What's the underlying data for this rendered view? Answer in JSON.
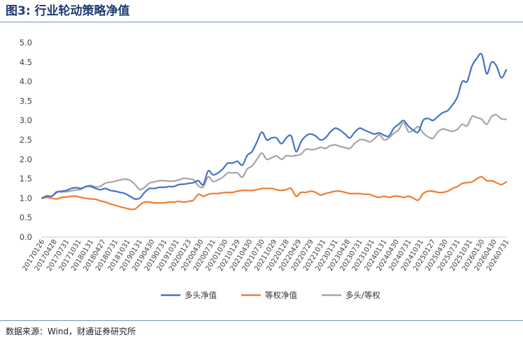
{
  "figure": {
    "title": "图3: 行业轮动策略净值",
    "source": "数据来源：Wind，财通证券研究所"
  },
  "chart_data": {
    "type": "line",
    "ylim": [
      0,
      5
    ],
    "yticks": [
      "0.0",
      "0.5",
      "1.0",
      "1.5",
      "2.0",
      "2.5",
      "3.0",
      "3.5",
      "4.0",
      "4.5",
      "5.0"
    ],
    "grid": false,
    "legend_position": "bottom",
    "xtick_labels": [
      "20170126",
      "20170428",
      "20170731",
      "20171031",
      "20180131",
      "20180427",
      "20180731",
      "20181031",
      "20190131",
      "20190430",
      "20190731",
      "20191031",
      "20200123",
      "20200430",
      "20200731",
      "20201030",
      "20210129",
      "20210430",
      "20210730",
      "20211029",
      "20220128",
      "20220429",
      "20220729",
      "20221031",
      "20230131",
      "20230428",
      "20230731",
      "20231031",
      "20240131",
      "20240430",
      "20240731",
      "20241031",
      "20250127",
      "20250430",
      "20250731",
      "20251031",
      "20260130",
      "20260430",
      "20260731"
    ],
    "series": [
      {
        "name": "多头净值",
        "color": "#4472c4",
        "values": [
          1.0,
          1.06,
          1.05,
          1.15,
          1.18,
          1.2,
          1.25,
          1.27,
          1.25,
          1.3,
          1.3,
          1.25,
          1.22,
          1.25,
          1.2,
          1.18,
          1.15,
          1.12,
          1.05,
          0.98,
          1.0,
          1.15,
          1.25,
          1.25,
          1.28,
          1.28,
          1.3,
          1.3,
          1.35,
          1.36,
          1.38,
          1.4,
          1.45,
          1.35,
          1.7,
          1.6,
          1.65,
          1.75,
          1.9,
          1.9,
          1.95,
          1.85,
          2.1,
          2.2,
          2.45,
          2.7,
          2.5,
          2.55,
          2.55,
          2.4,
          2.55,
          2.6,
          2.2,
          2.45,
          2.6,
          2.65,
          2.6,
          2.5,
          2.55,
          2.7,
          2.8,
          2.75,
          2.65,
          2.55,
          2.7,
          2.8,
          2.75,
          2.7,
          2.65,
          2.68,
          2.62,
          2.6,
          2.8,
          2.9,
          3.0,
          2.85,
          2.75,
          2.7,
          3.0,
          3.05,
          3.0,
          3.1,
          3.2,
          3.25,
          3.4,
          3.6,
          4.0,
          4.0,
          4.4,
          4.6,
          4.7,
          4.2,
          4.5,
          4.4,
          4.1,
          4.3
        ]
      },
      {
        "name": "等权净值",
        "color": "#ed7d31",
        "values": [
          1.0,
          1.02,
          1.0,
          0.98,
          1.02,
          1.03,
          1.05,
          1.05,
          1.02,
          1.0,
          0.98,
          0.97,
          0.93,
          0.9,
          0.85,
          0.82,
          0.78,
          0.75,
          0.72,
          0.72,
          0.82,
          0.9,
          0.9,
          0.88,
          0.88,
          0.88,
          0.9,
          0.9,
          0.92,
          0.9,
          0.92,
          0.95,
          1.1,
          1.05,
          1.1,
          1.12,
          1.12,
          1.14,
          1.15,
          1.15,
          1.18,
          1.2,
          1.2,
          1.2,
          1.22,
          1.25,
          1.25,
          1.25,
          1.22,
          1.2,
          1.22,
          1.25,
          1.05,
          1.15,
          1.15,
          1.18,
          1.15,
          1.08,
          1.12,
          1.15,
          1.18,
          1.18,
          1.15,
          1.12,
          1.12,
          1.12,
          1.1,
          1.1,
          1.05,
          1.02,
          1.05,
          1.02,
          1.05,
          1.05,
          1.02,
          1.05,
          1.0,
          0.95,
          1.12,
          1.18,
          1.18,
          1.15,
          1.15,
          1.18,
          1.25,
          1.3,
          1.38,
          1.4,
          1.42,
          1.5,
          1.55,
          1.45,
          1.45,
          1.4,
          1.35,
          1.42
        ]
      },
      {
        "name": "多头/等权",
        "color": "#a5a5a5",
        "values": [
          1.0,
          1.04,
          1.05,
          1.17,
          1.16,
          1.17,
          1.19,
          1.21,
          1.23,
          1.3,
          1.33,
          1.29,
          1.31,
          1.39,
          1.41,
          1.44,
          1.47,
          1.49,
          1.46,
          1.36,
          1.22,
          1.28,
          1.39,
          1.42,
          1.45,
          1.45,
          1.44,
          1.44,
          1.47,
          1.51,
          1.5,
          1.47,
          1.32,
          1.29,
          1.55,
          1.43,
          1.47,
          1.54,
          1.65,
          1.65,
          1.65,
          1.54,
          1.75,
          1.83,
          2.0,
          2.16,
          2.0,
          2.04,
          2.09,
          2.0,
          2.09,
          2.08,
          2.1,
          2.13,
          2.26,
          2.25,
          2.26,
          2.31,
          2.28,
          2.35,
          2.37,
          2.33,
          2.3,
          2.28,
          2.41,
          2.5,
          2.5,
          2.45,
          2.52,
          2.63,
          2.5,
          2.55,
          2.67,
          2.76,
          2.94,
          2.71,
          2.75,
          2.84,
          2.68,
          2.58,
          2.54,
          2.7,
          2.78,
          2.75,
          2.72,
          2.77,
          2.9,
          2.86,
          3.1,
          3.07,
          3.03,
          2.9,
          3.1,
          3.14,
          3.04,
          3.03
        ]
      }
    ]
  }
}
